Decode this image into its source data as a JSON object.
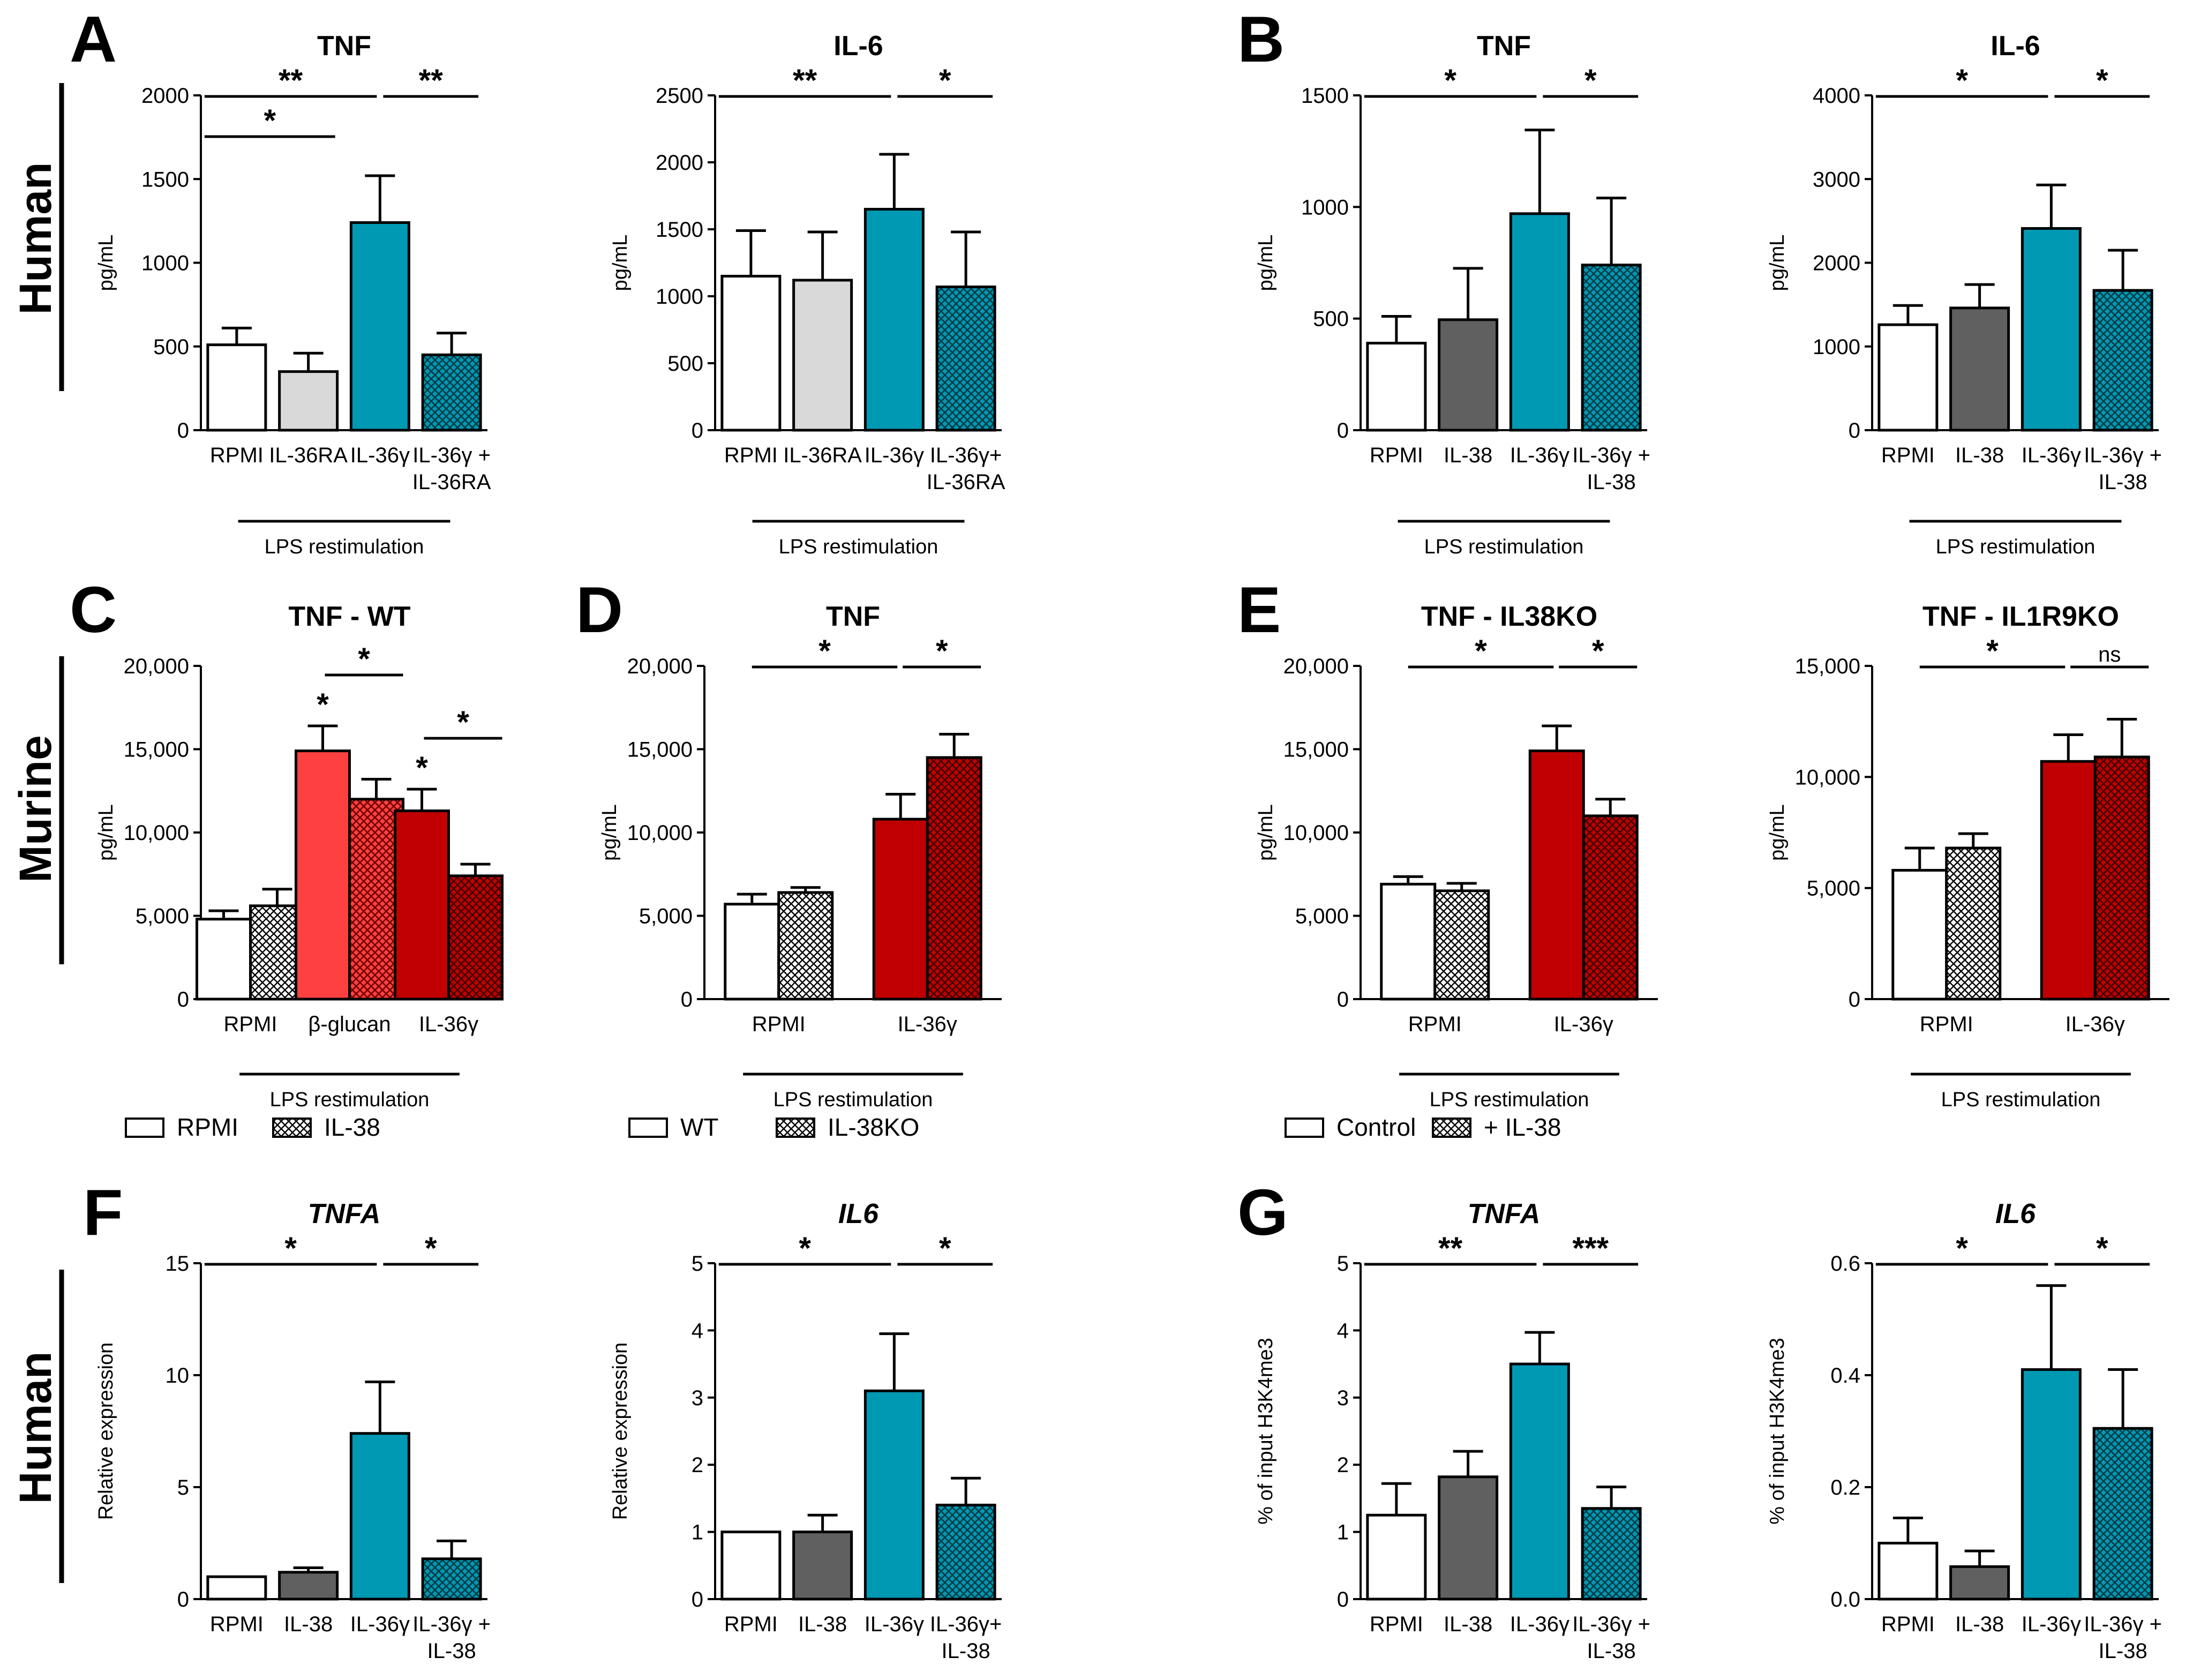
{
  "colors": {
    "white": "#ffffff",
    "gray_light": "#d9d9d9",
    "gray_dark": "#606060",
    "teal": "#0099b4",
    "red_light": "#ff4040",
    "red": "#c00000",
    "dark": "#000000"
  },
  "groups": [
    {
      "label": "Human",
      "id": "top"
    },
    {
      "label": "Murine",
      "id": "mid"
    },
    {
      "label": "Human",
      "id": "bottom"
    }
  ],
  "panel_letters": [
    "A",
    "B",
    "C",
    "D",
    "E",
    "F",
    "G"
  ],
  "chart_data": [
    {
      "id": "A1",
      "letter": "A",
      "type": "bar",
      "title": "TNF",
      "italic": false,
      "ylabel": "pg/mL",
      "ylim": [
        0,
        2000
      ],
      "yticks": [
        "0",
        "500",
        "1000",
        "1500",
        "2000"
      ],
      "bars": [
        {
          "label": "RPMI",
          "value": 510,
          "err": 100,
          "fill": "white"
        },
        {
          "label": "IL-36RA",
          "value": 350,
          "err": 110,
          "fill": "gray_light"
        },
        {
          "label": "IL-36γ",
          "value": 1240,
          "err": 280,
          "fill": "teal"
        },
        {
          "label": "IL-36γ +\nIL-36RA",
          "value": 450,
          "err": 130,
          "fill": "teal",
          "hatch": true
        }
      ],
      "footer": "LPS restimulation",
      "sig": [
        {
          "from": 0,
          "to": 2,
          "text": "**",
          "level": 0
        },
        {
          "from": 2,
          "to": 3,
          "text": "**",
          "level": 0
        },
        {
          "from": 0,
          "to": 1,
          "text": "*",
          "level": 1
        }
      ]
    },
    {
      "id": "A2",
      "type": "bar",
      "title": "IL-6",
      "italic": false,
      "ylabel": "pg/mL",
      "ylim": [
        0,
        2500
      ],
      "yticks": [
        "0",
        "500",
        "1000",
        "1500",
        "2000",
        "2500"
      ],
      "bars": [
        {
          "label": "RPMI​",
          "value": 1150,
          "err": 340,
          "fill": "white"
        },
        {
          "label": "IL-36RA",
          "value": 1120,
          "err": 360,
          "fill": "gray_light"
        },
        {
          "label": "IL-36γ",
          "value": 1650,
          "err": 410,
          "fill": "teal"
        },
        {
          "label": "IL-36γ+\nIL-36RA",
          "value": 1070,
          "err": 410,
          "fill": "teal",
          "hatch": true
        }
      ],
      "footer": "LPS restimulation",
      "sig": [
        {
          "from": 0,
          "to": 2,
          "text": "**",
          "level": 0
        },
        {
          "from": 2,
          "to": 3,
          "text": "*",
          "level": 0
        }
      ]
    },
    {
      "id": "B1",
      "letter": "B",
      "type": "bar",
      "title": "TNF",
      "italic": false,
      "ylabel": "pg/mL",
      "ylim": [
        0,
        1500
      ],
      "yticks": [
        "0",
        "500",
        "1000",
        "1500"
      ],
      "bars": [
        {
          "label": "RPMI",
          "value": 390,
          "err": 120,
          "fill": "white"
        },
        {
          "label": "IL-38",
          "value": 495,
          "err": 230,
          "fill": "gray_dark"
        },
        {
          "label": "IL-36γ",
          "value": 970,
          "err": 375,
          "fill": "teal"
        },
        {
          "label": "IL-36γ +\nIL-38",
          "value": 740,
          "err": 300,
          "fill": "teal",
          "hatch": true
        }
      ],
      "footer": "LPS restimulation",
      "sig": [
        {
          "from": 0,
          "to": 2,
          "text": "*",
          "level": 0
        },
        {
          "from": 2,
          "to": 3,
          "text": "*",
          "level": 0
        }
      ]
    },
    {
      "id": "B2",
      "type": "bar",
      "title": "IL-6",
      "italic": false,
      "ylabel": "pg/mL",
      "ylim": [
        0,
        4000
      ],
      "yticks": [
        "0",
        "1000",
        "2000",
        "3000",
        "4000"
      ],
      "bars": [
        {
          "label": "RPMI",
          "value": 1260,
          "err": 230,
          "fill": "white"
        },
        {
          "label": "IL-38",
          "value": 1460,
          "err": 280,
          "fill": "gray_dark"
        },
        {
          "label": "IL-36γ",
          "value": 2410,
          "err": 520,
          "fill": "teal"
        },
        {
          "label": "IL-36γ +\nIL-38",
          "value": 1670,
          "err": 480,
          "fill": "teal",
          "hatch": true
        }
      ],
      "footer": "LPS restimulation",
      "sig": [
        {
          "from": 0,
          "to": 2,
          "text": "*",
          "level": 0
        },
        {
          "from": 2,
          "to": 3,
          "text": "*",
          "level": 0
        }
      ]
    },
    {
      "id": "C",
      "letter": "C",
      "type": "bar",
      "title": "TNF - WT",
      "italic": false,
      "ylabel": "pg/mL",
      "ylim": [
        0,
        20000
      ],
      "yticks": [
        "0",
        "5,000",
        "10,000",
        "15,000",
        "20,000"
      ],
      "groups": [
        "RPMI",
        "β-glucan",
        "IL-36γ"
      ],
      "bars": [
        {
          "group": 0,
          "value": 4800,
          "err": 500,
          "fill": "white"
        },
        {
          "group": 0,
          "value": 5600,
          "err": 1000,
          "fill": "white",
          "hatch": true
        },
        {
          "group": 1,
          "value": 14900,
          "err": 1500,
          "fill": "red_light"
        },
        {
          "group": 1,
          "value": 12000,
          "err": 1200,
          "fill": "red_light",
          "hatch": true
        },
        {
          "group": 2,
          "value": 11300,
          "err": 1300,
          "fill": "red"
        },
        {
          "group": 2,
          "value": 7400,
          "err": 700,
          "fill": "red",
          "hatch": true
        }
      ],
      "footer": "LPS restimulation",
      "legend": [
        {
          "label": "RPMI",
          "fill": "white"
        },
        {
          "label": "IL-38",
          "fill": "white",
          "hatch": true
        }
      ],
      "sig": [
        {
          "from": 2,
          "to": 3,
          "text": "*",
          "level": 0
        },
        {
          "from": 4,
          "to": 5,
          "text": "*",
          "level": 0
        }
      ],
      "stars": [
        {
          "bar": 2,
          "text": "*"
        },
        {
          "bar": 4,
          "text": "*"
        }
      ]
    },
    {
      "id": "D",
      "letter": "D",
      "type": "bar",
      "title": "TNF",
      "italic": false,
      "ylabel": "pg/mL",
      "ylim": [
        0,
        20000
      ],
      "yticks": [
        "0",
        "5,000",
        "10,000",
        "15,000",
        "20,000"
      ],
      "groups": [
        "RPMI",
        "IL-36γ"
      ],
      "bars": [
        {
          "group": 0,
          "value": 5700,
          "err": 600,
          "fill": "white"
        },
        {
          "group": 0,
          "value": 6400,
          "err": 300,
          "fill": "white",
          "hatch": true
        },
        {
          "group": 1,
          "value": 10800,
          "err": 1500,
          "fill": "red"
        },
        {
          "group": 1,
          "value": 14500,
          "err": 1400,
          "fill": "red",
          "hatch": true
        }
      ],
      "footer": "LPS restimulation",
      "legend": [
        {
          "label": "WT",
          "fill": "white"
        },
        {
          "label": "IL-38KO",
          "fill": "white",
          "hatch": true
        }
      ],
      "sig": [
        {
          "from": 0,
          "to": 2,
          "text": "*",
          "level": 0
        },
        {
          "from": 2,
          "to": 3,
          "text": "*",
          "level": 0
        }
      ]
    },
    {
      "id": "E1",
      "letter": "E",
      "type": "bar",
      "title": "TNF - IL38KO",
      "italic": false,
      "ylabel": "pg/mL",
      "ylim": [
        0,
        20000
      ],
      "yticks": [
        "0",
        "5,000",
        "10,000",
        "15,000",
        "20,000"
      ],
      "groups": [
        "RPMI",
        "IL-36γ"
      ],
      "bars": [
        {
          "group": 0,
          "value": 6900,
          "err": 450,
          "fill": "white"
        },
        {
          "group": 0,
          "value": 6500,
          "err": 450,
          "fill": "white",
          "hatch": true
        },
        {
          "group": 1,
          "value": 14900,
          "err": 1500,
          "fill": "red"
        },
        {
          "group": 1,
          "value": 11000,
          "err": 1000,
          "fill": "red",
          "hatch": true
        }
      ],
      "footer": "LPS restimulation",
      "legend": [
        {
          "label": "Control",
          "fill": "white"
        },
        {
          "label": "+ IL-38",
          "fill": "white",
          "hatch": true
        }
      ],
      "sig": [
        {
          "from": 0,
          "to": 2,
          "text": "*",
          "level": 0
        },
        {
          "from": 2,
          "to": 3,
          "text": "*",
          "level": 0
        }
      ]
    },
    {
      "id": "E2",
      "type": "bar",
      "title": "TNF - IL1R9KO",
      "italic": false,
      "ylabel": "pg/mL",
      "ylim": [
        0,
        15000
      ],
      "yticks": [
        "0",
        "5,000",
        "10,000",
        "15,000"
      ],
      "groups": [
        "RPMI",
        "IL-36γ"
      ],
      "bars": [
        {
          "group": 0,
          "value": 5800,
          "err": 1000,
          "fill": "white"
        },
        {
          "group": 0,
          "value": 6800,
          "err": 650,
          "fill": "white",
          "hatch": true
        },
        {
          "group": 1,
          "value": 10700,
          "err": 1200,
          "fill": "red"
        },
        {
          "group": 1,
          "value": 10900,
          "err": 1700,
          "fill": "red",
          "hatch": true
        }
      ],
      "footer": "LPS restimulation",
      "sig": [
        {
          "from": 0,
          "to": 2,
          "text": "*",
          "level": 0
        },
        {
          "from": 2,
          "to": 3,
          "text": "ns",
          "level": 0
        }
      ]
    },
    {
      "id": "F1",
      "letter": "F",
      "type": "bar",
      "title": "TNFA",
      "italic": true,
      "ylabel": "Relative expression",
      "ylim": [
        0,
        15
      ],
      "yticks": [
        "0",
        "5",
        "10",
        "15"
      ],
      "bars": [
        {
          "label": "RPMI",
          "value": 1.0,
          "err": 0,
          "fill": "white"
        },
        {
          "label": "IL-38",
          "value": 1.2,
          "err": 0.2,
          "fill": "gray_dark"
        },
        {
          "label": "IL-36γ",
          "value": 7.4,
          "err": 2.3,
          "fill": "teal"
        },
        {
          "label": "IL-36γ +\nIL-38",
          "value": 1.8,
          "err": 0.8,
          "fill": "teal",
          "hatch": true
        }
      ],
      "sig": [
        {
          "from": 0,
          "to": 2,
          "text": "*",
          "level": 0
        },
        {
          "from": 2,
          "to": 3,
          "text": "*",
          "level": 0
        }
      ]
    },
    {
      "id": "F2",
      "type": "bar",
      "title": "IL6",
      "italic": true,
      "ylabel": "Relative expression",
      "ylim": [
        0,
        5
      ],
      "yticks": [
        "0",
        "1",
        "2",
        "3",
        "4",
        "5"
      ],
      "bars": [
        {
          "label": "RPMI",
          "value": 1.0,
          "err": 0,
          "fill": "white"
        },
        {
          "label": "IL-38",
          "value": 1.0,
          "err": 0.25,
          "fill": "gray_dark"
        },
        {
          "label": "IL-36γ",
          "value": 3.1,
          "err": 0.85,
          "fill": "teal"
        },
        {
          "label": "IL-36γ+\nIL-38",
          "value": 1.4,
          "err": 0.4,
          "fill": "teal",
          "hatch": true
        }
      ],
      "sig": [
        {
          "from": 0,
          "to": 2,
          "text": "*",
          "level": 0
        },
        {
          "from": 2,
          "to": 3,
          "text": "*",
          "level": 0
        }
      ]
    },
    {
      "id": "G1",
      "letter": "G",
      "type": "bar",
      "title": "TNFA",
      "italic": true,
      "ylabel": "% of input H3K4me3",
      "ylim": [
        0,
        5
      ],
      "yticks": [
        "0",
        "1",
        "2",
        "3",
        "4",
        "5"
      ],
      "bars": [
        {
          "label": "RPMI",
          "value": 1.25,
          "err": 0.47,
          "fill": "white"
        },
        {
          "label": "IL-38",
          "value": 1.82,
          "err": 0.38,
          "fill": "gray_dark"
        },
        {
          "label": "IL-36γ",
          "value": 3.5,
          "err": 0.47,
          "fill": "teal"
        },
        {
          "label": "IL-36γ +\nIL-38",
          "value": 1.35,
          "err": 0.32,
          "fill": "teal",
          "hatch": true
        }
      ],
      "sig": [
        {
          "from": 0,
          "to": 2,
          "text": "**",
          "level": 0
        },
        {
          "from": 2,
          "to": 3,
          "text": "***",
          "level": 0
        }
      ]
    },
    {
      "id": "G2",
      "type": "bar",
      "title": "IL6",
      "italic": true,
      "ylabel": "% of input H3K4me3",
      "ylim": [
        0,
        0.6
      ],
      "yticks": [
        "0.0",
        "0.2",
        "0.4",
        "0.6"
      ],
      "bars": [
        {
          "label": "RPMI",
          "value": 0.1,
          "err": 0.045,
          "fill": "white"
        },
        {
          "label": "IL-38",
          "value": 0.058,
          "err": 0.028,
          "fill": "gray_dark"
        },
        {
          "label": "IL-36γ",
          "value": 0.41,
          "err": 0.15,
          "fill": "teal"
        },
        {
          "label": "IL-36γ +\nIL-38",
          "value": 0.305,
          "err": 0.105,
          "fill": "teal",
          "hatch": true
        }
      ],
      "sig": [
        {
          "from": 0,
          "to": 2,
          "text": "*",
          "level": 0
        },
        {
          "from": 2,
          "to": 3,
          "text": "*",
          "level": 0
        }
      ]
    }
  ]
}
